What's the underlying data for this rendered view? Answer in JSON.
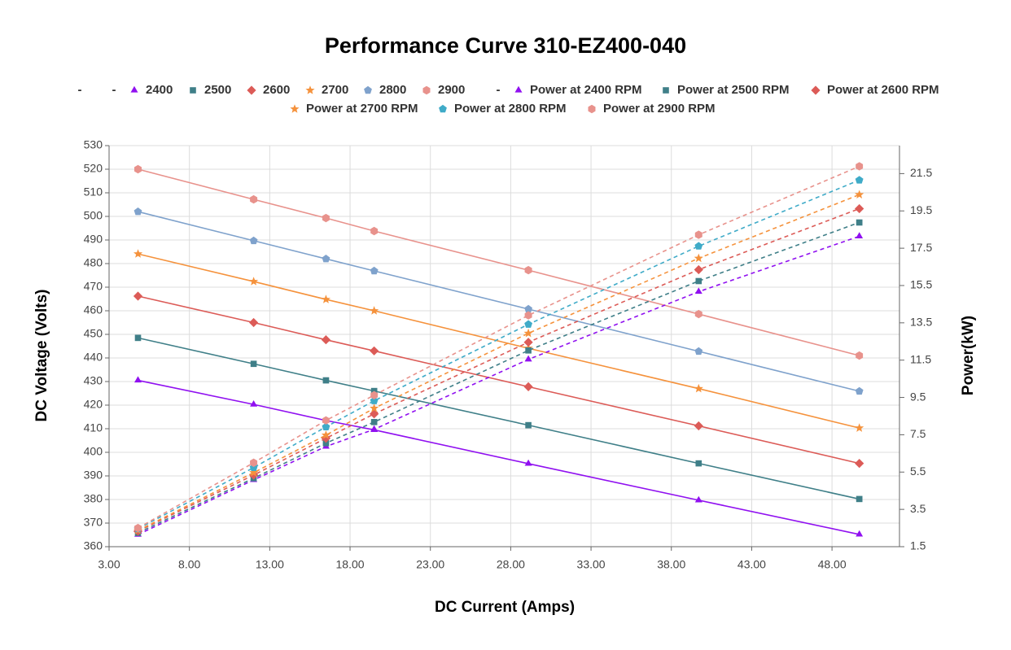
{
  "chart_data": {
    "type": "line",
    "title": "Performance Curve 310-EZ400-040",
    "x_label": "DC Current (Amps)",
    "y_label": "DC Voltage (Volts)",
    "y2_label": "Power(kW)",
    "x": [
      4.8,
      12.0,
      16.5,
      19.5,
      29.1,
      39.7,
      49.7
    ],
    "xlim": [
      3,
      52.2
    ],
    "xticks": [
      {
        "value": 3,
        "label": "3.00"
      },
      {
        "value": 8,
        "label": "8.00"
      },
      {
        "value": 13,
        "label": "13.00"
      },
      {
        "value": 18,
        "label": "18.00"
      },
      {
        "value": 23,
        "label": "23.00"
      },
      {
        "value": 28,
        "label": "28.00"
      },
      {
        "value": 33,
        "label": "33.00"
      },
      {
        "value": 38,
        "label": "38.00"
      },
      {
        "value": 43,
        "label": "43.00"
      },
      {
        "value": 48,
        "label": "48.00"
      }
    ],
    "ylim": [
      360,
      530
    ],
    "yticks": [
      360,
      370,
      380,
      390,
      400,
      410,
      420,
      430,
      440,
      450,
      460,
      470,
      480,
      490,
      500,
      510,
      520,
      530
    ],
    "y2lim": [
      1.5,
      23
    ],
    "y2ticks": [
      1.5,
      3.5,
      5.5,
      7.5,
      9.5,
      11.5,
      13.5,
      15.5,
      17.5,
      19.5,
      21.5
    ],
    "grid": true,
    "legend": "top",
    "series": [
      {
        "name": "-",
        "values": [
          null,
          null,
          null,
          null,
          null,
          null,
          null
        ]
      },
      {
        "name": "-",
        "values": [
          null,
          null,
          null,
          null,
          null,
          null,
          null
        ]
      },
      {
        "name": "2400",
        "color": "#9010f0",
        "marker": "triangle",
        "values": [
          430.5,
          420.3,
          413.5,
          409.5,
          395.2,
          379.7,
          365.2
        ]
      },
      {
        "name": "2500",
        "color": "#3f7f88",
        "marker": "square",
        "values": [
          448.5,
          437.5,
          430.5,
          426.0,
          411.5,
          395.3,
          380.2
        ]
      },
      {
        "name": "2600",
        "color": "#dc5b57",
        "marker": "diamond",
        "values": [
          466.2,
          455.0,
          447.7,
          443.0,
          427.8,
          411.2,
          395.3
        ]
      },
      {
        "name": "2700",
        "color": "#f5923c",
        "marker": "star",
        "values": [
          484.1,
          472.4,
          464.8,
          460.0,
          444.1,
          427.0,
          410.3
        ]
      },
      {
        "name": "2800",
        "color": "#7fa2cc",
        "marker": "pentagon",
        "values": [
          502.0,
          489.7,
          482.0,
          476.9,
          460.7,
          442.8,
          425.9
        ]
      },
      {
        "name": "2900",
        "color": "#e8928c",
        "marker": "hexagon",
        "values": [
          520.0,
          507.2,
          499.3,
          493.8,
          477.2,
          458.6,
          441.0
        ]
      },
      {
        "name": "-",
        "values": [
          null,
          null,
          null,
          null,
          null,
          null,
          null
        ]
      },
      {
        "name": "Power at 2400 RPM",
        "color": "#9010f0",
        "marker": "triangle",
        "axis": "y2",
        "line_style": "dashed",
        "values": [
          2.15,
          5.08,
          6.87,
          7.79,
          11.54,
          15.17,
          18.14
        ]
      },
      {
        "name": "Power at 2500 RPM",
        "color": "#3f7f88",
        "marker": "square",
        "axis": "y2",
        "line_style": "dashed",
        "values": [
          2.24,
          5.17,
          7.05,
          8.18,
          12.02,
          15.74,
          18.88
        ]
      },
      {
        "name": "Power at 2600 RPM",
        "color": "#dc5b57",
        "marker": "diamond",
        "axis": "y2",
        "line_style": "dashed",
        "values": [
          2.33,
          5.34,
          7.31,
          8.62,
          12.46,
          16.35,
          19.62
        ]
      },
      {
        "name": "Power at 2700 RPM",
        "color": "#f5923c",
        "marker": "star",
        "axis": "y2",
        "line_style": "dashed",
        "values": [
          2.37,
          5.47,
          7.48,
          8.92,
          12.94,
          16.96,
          20.37
        ]
      },
      {
        "name": "Power at 2800 RPM",
        "color": "#3fabc8",
        "marker": "pentagon",
        "axis": "y2",
        "line_style": "dashed",
        "values": [
          2.46,
          5.74,
          7.92,
          9.32,
          13.42,
          17.61,
          21.15
        ]
      },
      {
        "name": "Power at 2900 RPM",
        "color": "#e8928c",
        "marker": "hexagon",
        "axis": "y2",
        "line_style": "dashed",
        "values": [
          2.5,
          6.0,
          8.27,
          9.62,
          13.9,
          18.22,
          21.89
        ]
      }
    ]
  }
}
